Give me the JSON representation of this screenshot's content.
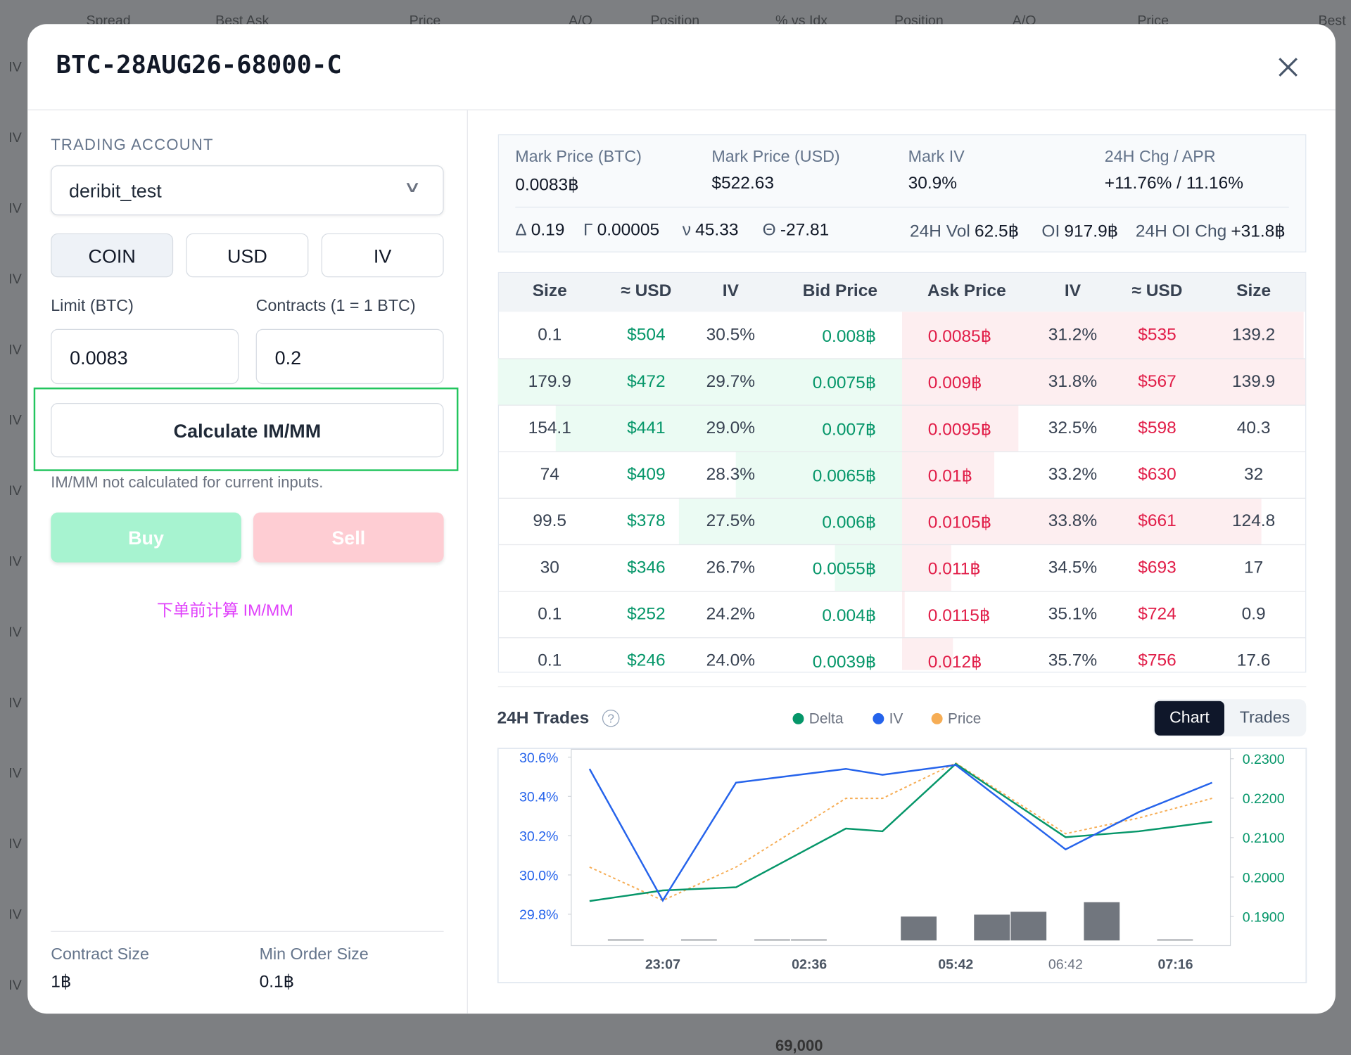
{
  "background": {
    "header": [
      "Spread",
      "Best Ask",
      "Price",
      "A/O",
      "Position",
      "% vs Idx",
      "Position",
      "A/O",
      "Price",
      "Best"
    ],
    "row_labels": [
      "IV",
      "IV",
      "IV",
      "IV",
      "IV",
      "IV",
      "IV",
      "IV",
      "IV",
      "IV",
      "IV",
      "IV",
      "IV",
      "IV"
    ],
    "strike": "69,000"
  },
  "modal": {
    "title": "BTC-28AUG26-68000-C",
    "left": {
      "account_label": "TRADING ACCOUNT",
      "account": "deribit_test",
      "modes": [
        "COIN",
        "USD",
        "IV"
      ],
      "limit_label": "Limit (BTC)",
      "limit_value": "0.0083",
      "contracts_label": "Contracts (1 = 1 BTC)",
      "contracts_value": "0.2",
      "calc_button": "Calculate IM/MM",
      "calc_note": "IM/MM not calculated for current inputs.",
      "buy": "Buy",
      "sell": "Sell",
      "hint": "下单前计算 IM/MM",
      "contract_size_label": "Contract Size",
      "contract_size": "1฿",
      "min_order_label": "Min Order Size",
      "min_order": "0.1฿"
    },
    "stats": [
      {
        "label": "Mark Price (BTC)",
        "value": "0.0083฿"
      },
      {
        "label": "Mark Price (USD)",
        "value": "$522.63"
      },
      {
        "label": "Mark IV",
        "value": "30.9%"
      },
      {
        "label": "24H Chg / APR",
        "value": "+11.76% / 11.16%"
      }
    ],
    "greeks": [
      {
        "label": "Δ",
        "value": "0.19"
      },
      {
        "label": "Γ",
        "value": "0.00005"
      },
      {
        "label": "ν",
        "value": "45.33"
      },
      {
        "label": "Θ",
        "value": "-27.81"
      },
      {
        "label": "24H Vol",
        "value": "62.5฿"
      },
      {
        "label": "OI",
        "value": "917.9฿"
      },
      {
        "label": "24H OI Chg",
        "value": "+31.8฿"
      }
    ],
    "orderbook": {
      "headers": [
        "Size",
        "≈ USD",
        "IV",
        "Bid Price",
        "Ask Price",
        "IV",
        "≈ USD",
        "Size"
      ],
      "rows": [
        [
          "0.1",
          "$504",
          "30.5%",
          "0.008฿",
          "0.0085฿",
          "31.2%",
          "$535",
          "139.2"
        ],
        [
          "179.9",
          "$472",
          "29.7%",
          "0.0075฿",
          "0.009฿",
          "31.8%",
          "$567",
          "139.9"
        ],
        [
          "154.1",
          "$441",
          "29.0%",
          "0.007฿",
          "0.0095฿",
          "32.5%",
          "$598",
          "40.3"
        ],
        [
          "74",
          "$409",
          "28.3%",
          "0.0065฿",
          "0.01฿",
          "33.2%",
          "$630",
          "32"
        ],
        [
          "99.5",
          "$378",
          "27.5%",
          "0.006฿",
          "0.0105฿",
          "33.8%",
          "$661",
          "124.8"
        ],
        [
          "30",
          "$346",
          "26.7%",
          "0.0055฿",
          "0.011฿",
          "34.5%",
          "$693",
          "17"
        ],
        [
          "0.1",
          "$252",
          "24.2%",
          "0.004฿",
          "0.0115฿",
          "35.1%",
          "$724",
          "0.9"
        ],
        [
          "0.1",
          "$246",
          "24.0%",
          "0.0039฿",
          "0.012฿",
          "35.7%",
          "$756",
          "17.6"
        ]
      ]
    },
    "trades": {
      "title": "24H Trades",
      "tabs": [
        "Chart",
        "Trades"
      ]
    }
  },
  "chart_data": {
    "type": "line",
    "categories": [
      null,
      null,
      "23:07",
      null,
      null,
      null,
      "02:36",
      null,
      null,
      null,
      "05:42",
      null,
      null,
      "06:42",
      null,
      null,
      "07:16",
      null
    ],
    "ylim": [
      29.64,
      30.64
    ],
    "yticks": [
      {
        "value": 29.8,
        "label": "29.8%"
      },
      {
        "value": 30.0,
        "label": "30.0%"
      },
      {
        "value": 30.2,
        "label": "30.2%"
      },
      {
        "value": 30.4,
        "label": "30.4%"
      },
      {
        "value": 30.6,
        "label": "30.6%"
      }
    ],
    "y2lim": [
      0.1826,
      0.2324
    ],
    "y2ticks": [
      {
        "value": 0.19,
        "label": "0.1900"
      },
      {
        "value": 0.2,
        "label": "0.2000"
      },
      {
        "value": 0.21,
        "label": "0.2100"
      },
      {
        "value": 0.22,
        "label": "0.2200"
      },
      {
        "value": 0.23,
        "label": "0.2300"
      }
    ],
    "y3lim": [
      0.0075,
      0.0085
    ],
    "y4lim": [
      0,
      20
    ],
    "series": [
      {
        "name": "Delta",
        "color": "#059669",
        "axis": "y2",
        "values": [
          0.1939,
          null,
          0.1966,
          null,
          0.1974,
          null,
          null,
          0.2123,
          0.2116,
          null,
          0.2287,
          null,
          null,
          0.2101,
          null,
          0.2116,
          null,
          0.214
        ]
      },
      {
        "name": "IV",
        "color": "#2563eb",
        "values": [
          30.54,
          null,
          29.87,
          null,
          30.47,
          null,
          null,
          30.54,
          30.51,
          null,
          30.56,
          null,
          null,
          30.13,
          null,
          30.32,
          null,
          30.47
        ]
      },
      {
        "name": "Price",
        "color": "#f6ad55",
        "axis": "y3",
        "dashed": true,
        "values": [
          0.0079,
          null,
          0.00773,
          null,
          0.0079,
          null,
          null,
          0.00825,
          0.00825,
          null,
          0.00843,
          null,
          null,
          0.00807,
          null,
          0.00815,
          null,
          0.00825
        ]
      },
      {
        "type": "bar",
        "color": "#71767e",
        "axis": "y4",
        "values": [
          null,
          0.1,
          null,
          0.1,
          null,
          0.1,
          0.1,
          null,
          null,
          2.5,
          null,
          2.7,
          3.0,
          null,
          4.0,
          null,
          0.1,
          null
        ]
      }
    ]
  }
}
